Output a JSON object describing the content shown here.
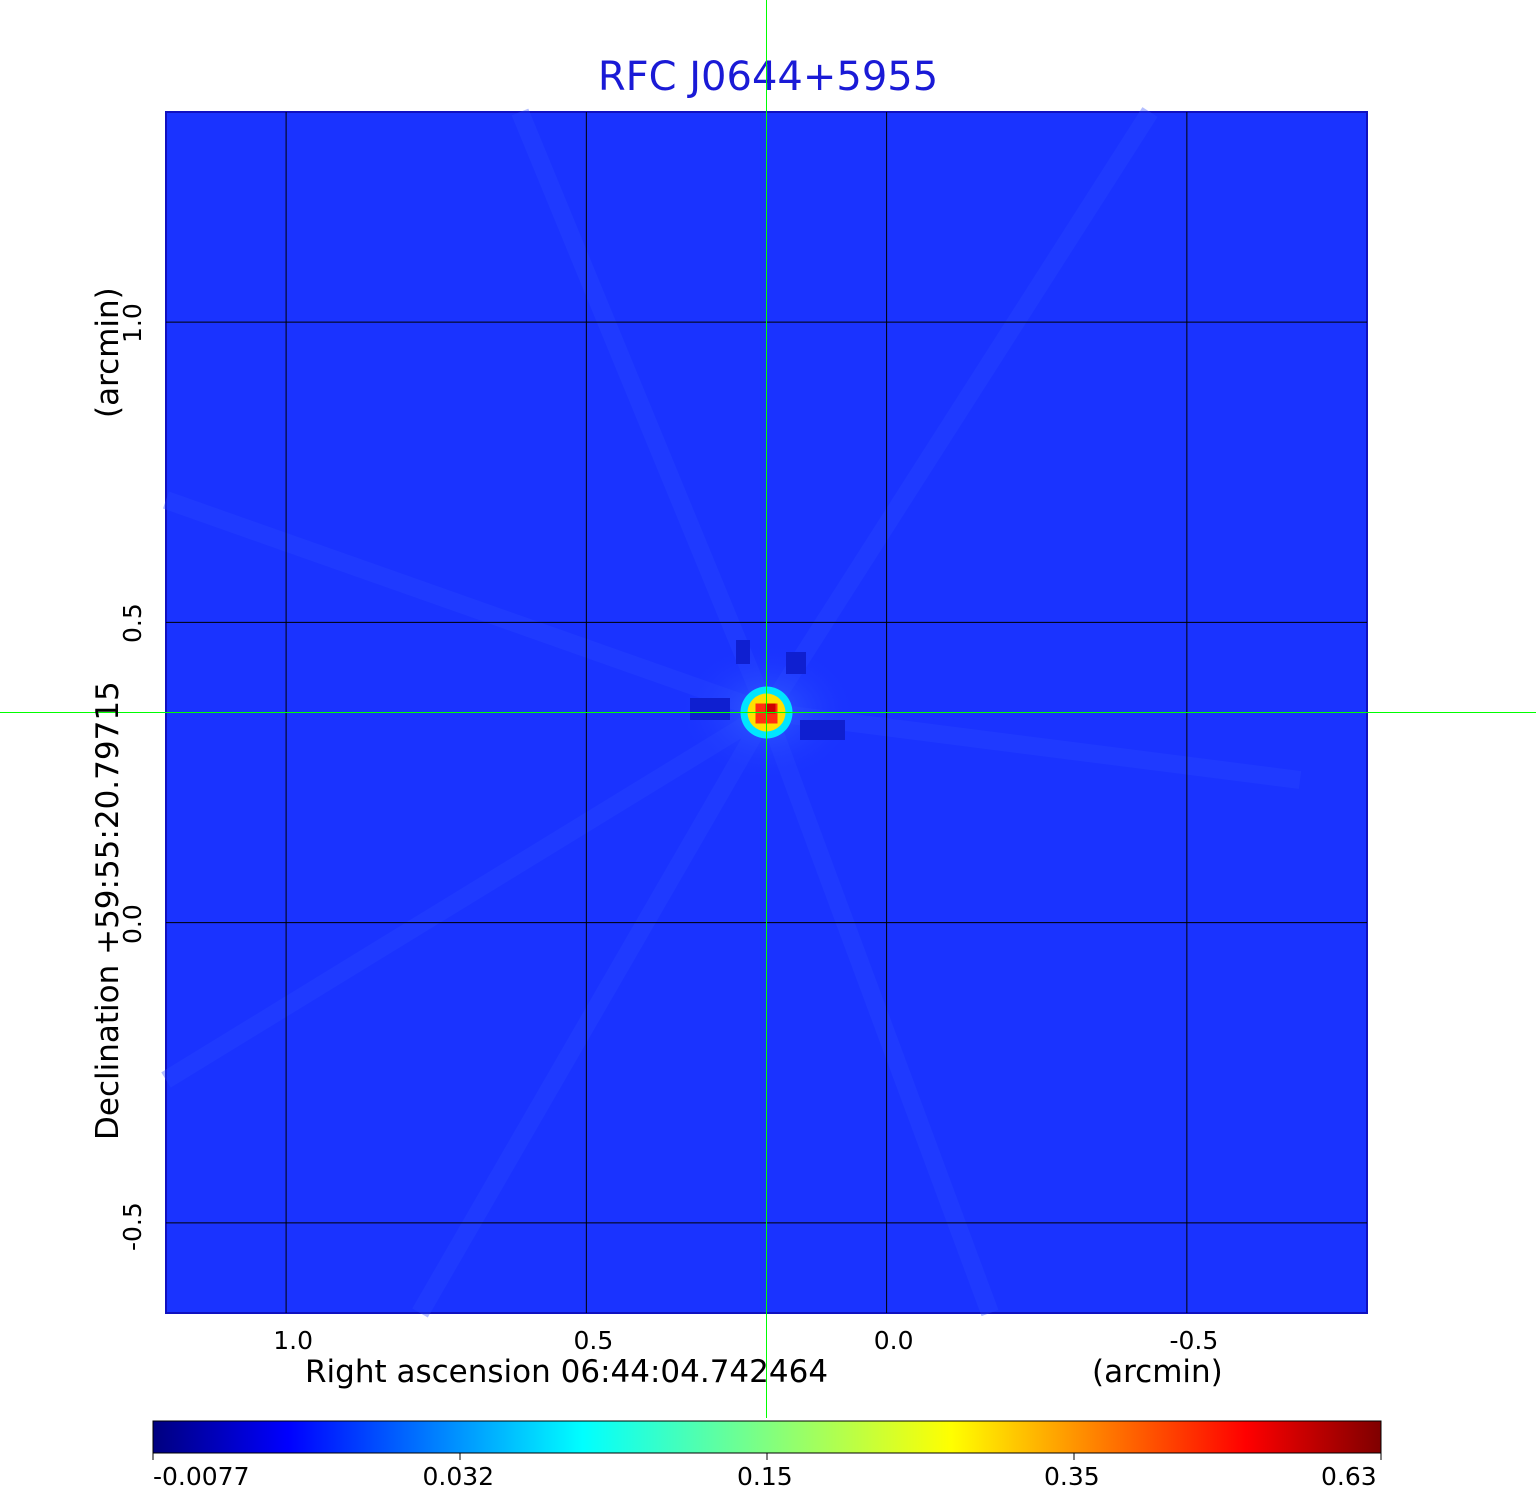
{
  "chart_data": {
    "type": "heatmap",
    "title": "RFC J0644+5955",
    "xlabel": "Right ascension  06:44:04.742464",
    "xunit": "(arcmin)",
    "ylabel": "Declination  +59:55:20.79715",
    "yunit": "(arcmin)",
    "x_ticks": [
      "1.0",
      "0.5",
      "0.0",
      "-0.5"
    ],
    "x_tick_values": [
      1.0,
      0.5,
      0.0,
      -0.5
    ],
    "y_ticks": [
      "1.0",
      "0.5",
      "0.0",
      "-0.5"
    ],
    "y_tick_values": [
      1.0,
      0.5,
      0.0,
      -0.5
    ],
    "xlim": [
      1.2,
      -0.8
    ],
    "ylim": [
      -0.65,
      1.35
    ],
    "grid": true,
    "crosshair": {
      "x": 0.2,
      "y": 0.35,
      "color": "#00ff00"
    },
    "peak": {
      "x": 0.2,
      "y": 0.35,
      "value": 0.63
    },
    "colorbar": {
      "ticks": [
        "-0.0077",
        "0.032",
        "0.15",
        "0.35",
        "0.63"
      ],
      "colormap": "jet",
      "placement": "bottom"
    },
    "colors": {
      "background": "#1a33ff",
      "title": "#1a1ad6"
    }
  }
}
